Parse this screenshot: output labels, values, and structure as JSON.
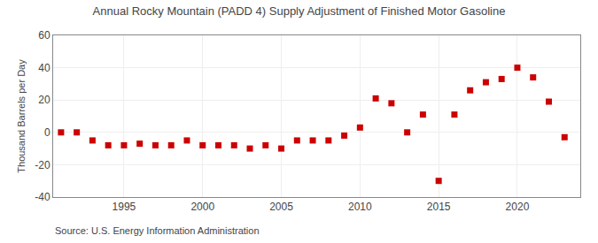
{
  "chart_data": {
    "type": "scatter",
    "title": "Annual Rocky Mountain (PADD 4) Supply Adjustment of Finished Motor Gasoline",
    "ylabel": "Thousand Barrels per Day",
    "annotations": [
      "Source: U.S. Energy Information Administration"
    ],
    "x": [
      1991,
      1992,
      1993,
      1994,
      1995,
      1996,
      1997,
      1998,
      1999,
      2000,
      2001,
      2002,
      2003,
      2004,
      2005,
      2006,
      2007,
      2008,
      2009,
      2010,
      2011,
      2012,
      2013,
      2014,
      2015,
      2016,
      2017,
      2018,
      2019,
      2020,
      2021,
      2022,
      2023
    ],
    "values": [
      0,
      0,
      -5,
      -8,
      -8,
      -7,
      -8,
      -8,
      -5,
      -8,
      -8,
      -8,
      -10,
      -8,
      -10,
      -5,
      -5,
      -5,
      -2,
      3,
      21,
      18,
      0,
      11,
      -30,
      11,
      26,
      31,
      33,
      40,
      34,
      19,
      -3
    ],
    "color": "#cc0000",
    "marker": "square",
    "xlim": [
      1990.5,
      2024
    ],
    "xticks": [
      1995,
      2000,
      2005,
      2010,
      2015,
      2020
    ],
    "ylim": [
      -40,
      60
    ],
    "yticks": [
      -40,
      -20,
      0,
      20,
      40,
      60
    ],
    "grid": true
  }
}
